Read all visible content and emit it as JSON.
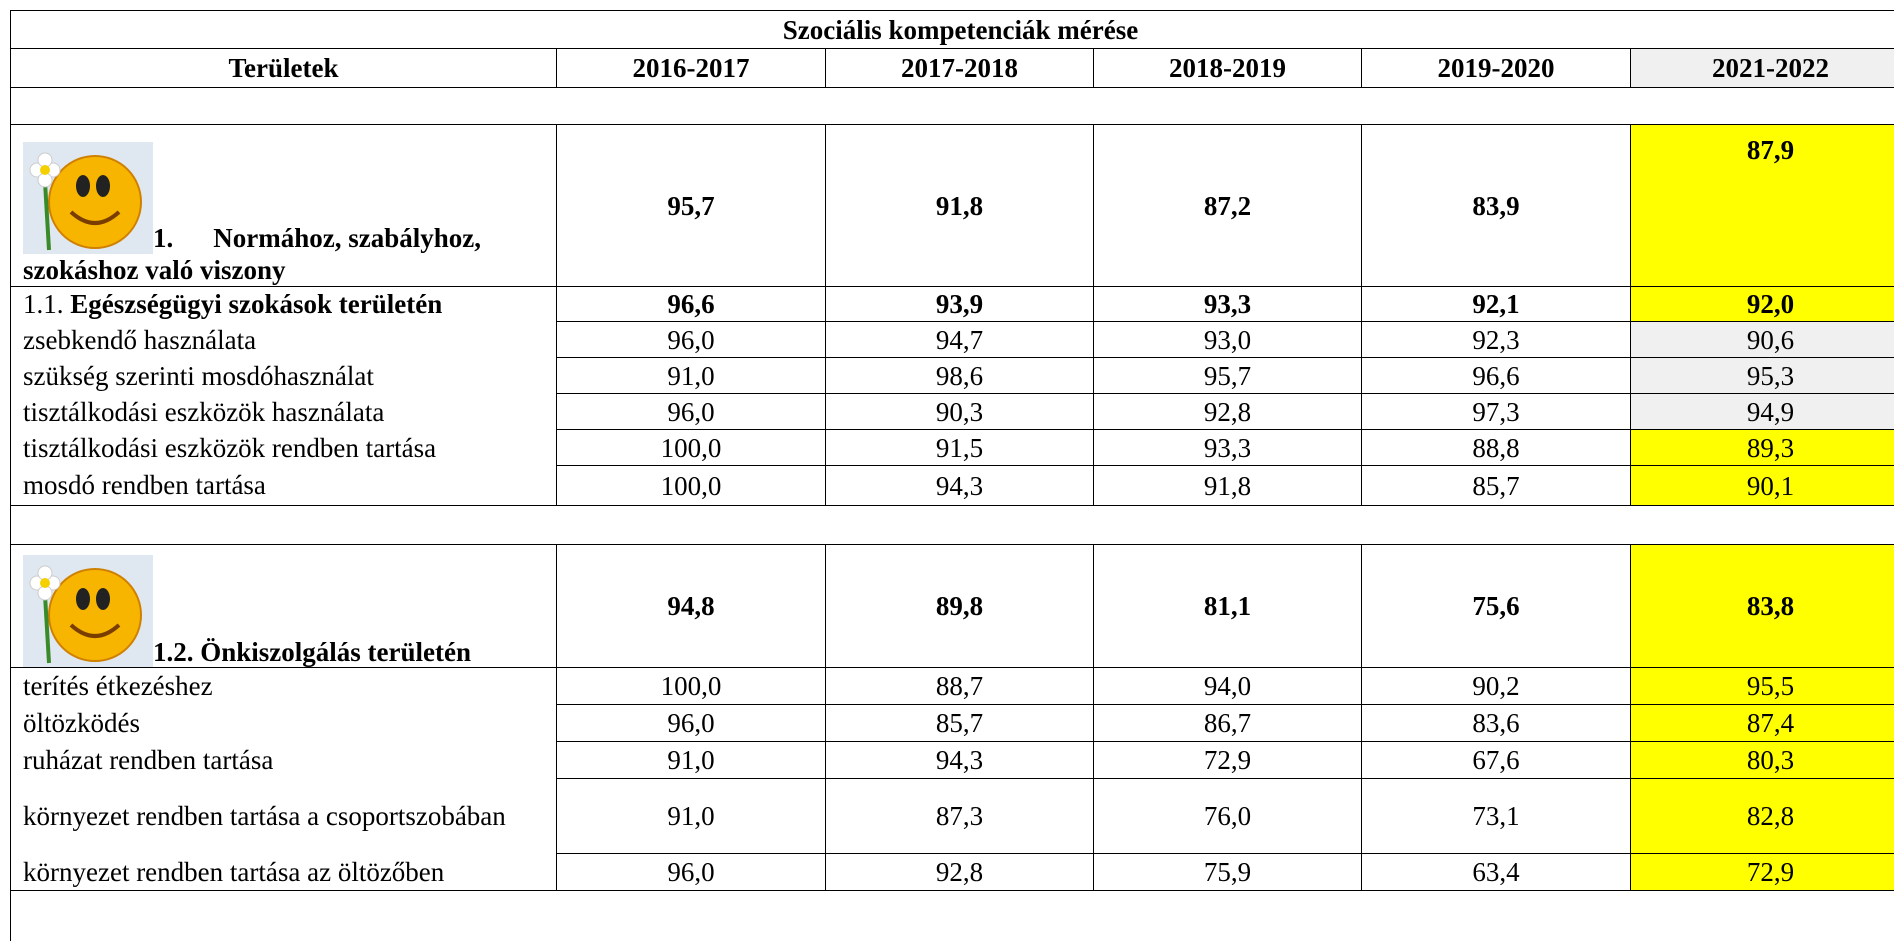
{
  "title": "Szociális kompetenciák mérése",
  "header": [
    "Területek",
    "2016-2017",
    "2017-2018",
    "2018-2019",
    "2019-2020",
    "2021-2022"
  ],
  "groups": [
    {
      "number": "1.",
      "label": "Normához, szabályhoz, szokáshoz való viszony",
      "values": [
        "95,7",
        "91,8",
        "87,2",
        "83,9",
        "87,9"
      ],
      "sub": {
        "number": "1.1.",
        "label": "Egészségügyi szokások területén",
        "values": [
          "96,6",
          "93,9",
          "93,3",
          "92,1",
          "92,0"
        ]
      },
      "rows": [
        {
          "label": "zsebkendő használata",
          "values": [
            "96,0",
            "94,7",
            "93,0",
            "92,3",
            "90,6"
          ]
        },
        {
          "label": "szükség szerinti mosdóhasználat",
          "values": [
            "91,0",
            "98,6",
            "95,7",
            "96,6",
            "95,3"
          ]
        },
        {
          "label": "tisztálkodási eszközök használata",
          "values": [
            "96,0",
            "90,3",
            "92,8",
            "97,3",
            "94,9"
          ]
        },
        {
          "label": "tisztálkodási eszközök rendben tartása",
          "values": [
            "100,0",
            "91,5",
            "93,3",
            "88,8",
            "89,3"
          ]
        },
        {
          "label": "mosdó rendben tartása",
          "values": [
            "100,0",
            "94,3",
            "91,8",
            "85,7",
            "90,1"
          ]
        }
      ]
    },
    {
      "label": "1.2. Önkiszolgálás területén",
      "values": [
        "94,8",
        "89,8",
        "81,1",
        "75,6",
        "83,8"
      ],
      "rows": [
        {
          "label": "terítés étkezéshez",
          "values": [
            "100,0",
            "88,7",
            "94,0",
            "90,2",
            "95,5"
          ]
        },
        {
          "label": "öltözködés",
          "values": [
            "96,0",
            "85,7",
            "86,7",
            "83,6",
            "87,4"
          ]
        },
        {
          "label": "ruházat rendben tartása",
          "values": [
            "91,0",
            "94,3",
            "72,9",
            "67,6",
            "80,3"
          ]
        },
        {
          "label": "környezet rendben tartása a csoportszobában",
          "values": [
            "91,0",
            "87,3",
            "76,0",
            "73,1",
            "82,8"
          ]
        },
        {
          "label": "környezet rendben tartása az öltözőben",
          "values": [
            "96,0",
            "92,8",
            "75,9",
            "63,4",
            "72,9"
          ]
        }
      ]
    }
  ]
}
